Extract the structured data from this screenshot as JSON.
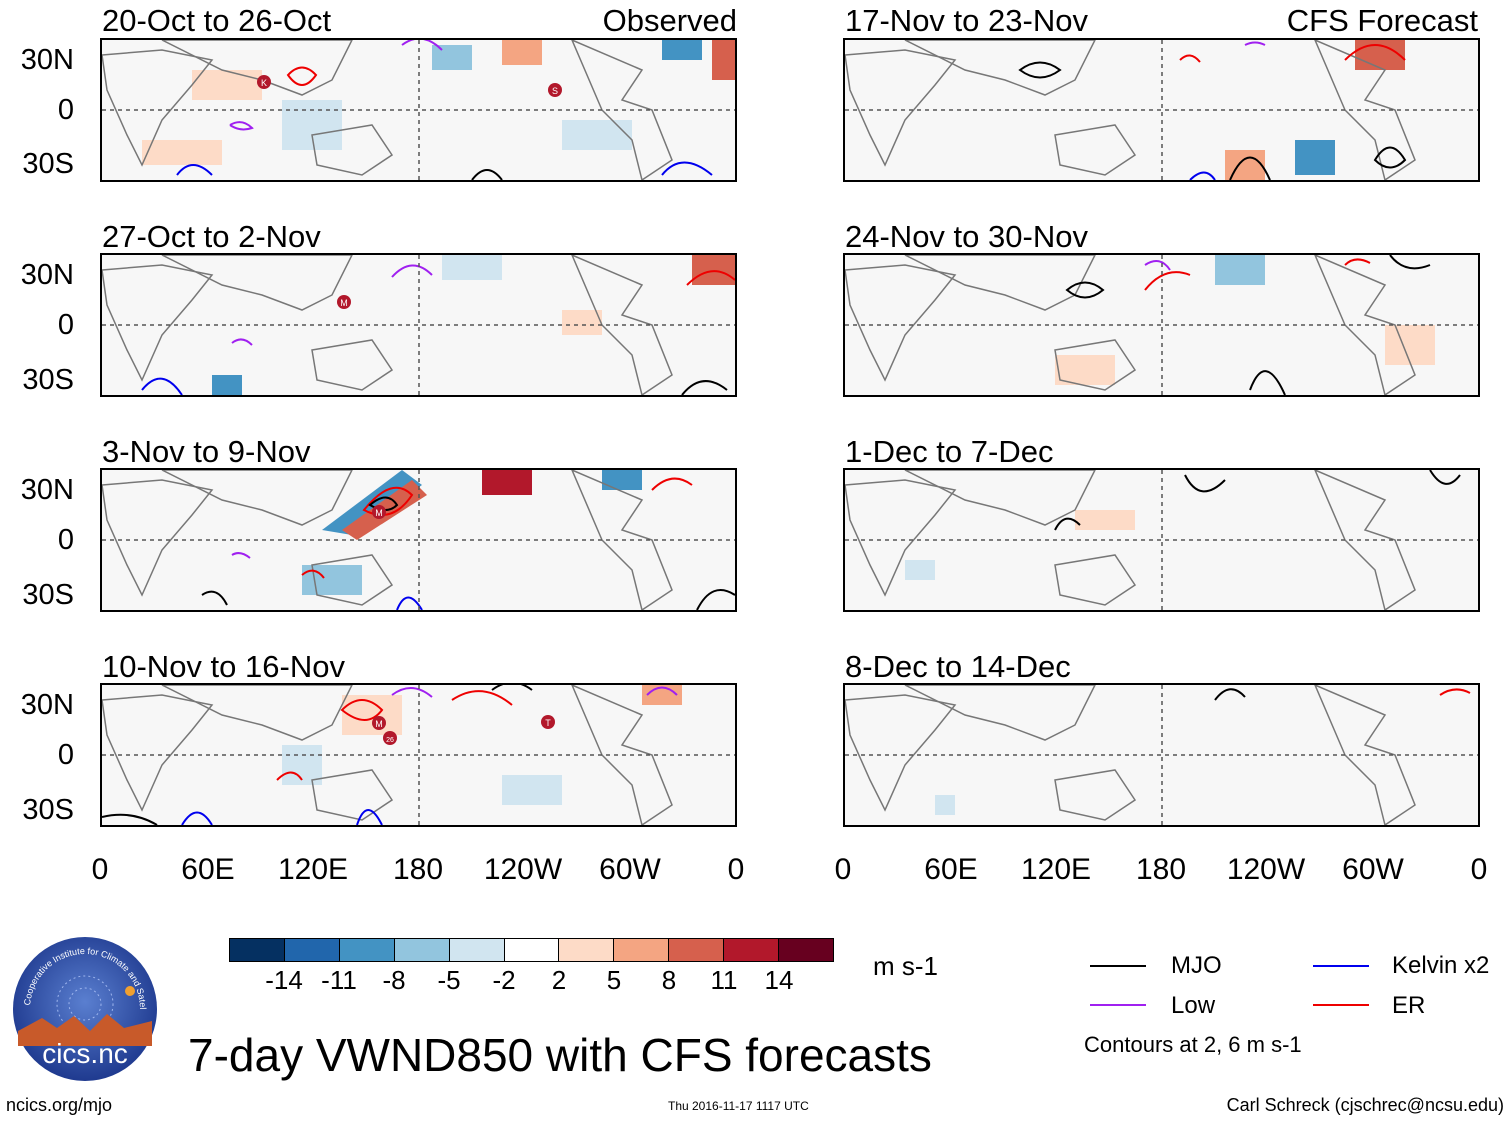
{
  "panels_left": [
    {
      "title": "20-Oct to 26-Oct",
      "tag": "Observed"
    },
    {
      "title": "27-Oct to 2-Nov",
      "tag": ""
    },
    {
      "title": "3-Nov to 9-Nov",
      "tag": ""
    },
    {
      "title": "10-Nov to 16-Nov",
      "tag": ""
    }
  ],
  "panels_right": [
    {
      "title": "17-Nov to 23-Nov",
      "tag": "CFS Forecast"
    },
    {
      "title": "24-Nov to 30-Nov",
      "tag": ""
    },
    {
      "title": "1-Dec to 7-Dec",
      "tag": ""
    },
    {
      "title": "8-Dec to 14-Dec",
      "tag": ""
    }
  ],
  "y_ticks": [
    "30N",
    "0",
    "30S"
  ],
  "x_ticks": [
    "0",
    "60E",
    "120E",
    "180",
    "120W",
    "60W",
    "0"
  ],
  "colorbar": {
    "labels": [
      "-14",
      "-11",
      "-8",
      "-5",
      "-2",
      "2",
      "5",
      "8",
      "11",
      "14"
    ],
    "colors": [
      "#053061",
      "#2166ac",
      "#4393c3",
      "#92c5de",
      "#d1e5f0",
      "#ffffff",
      "#fddbc7",
      "#f4a582",
      "#d6604d",
      "#b2182b",
      "#67001f"
    ],
    "units": "m s-1"
  },
  "legend": {
    "items": [
      {
        "label": "MJO",
        "color": "#000000"
      },
      {
        "label": "Kelvin x2",
        "color": "#0000ee"
      },
      {
        "label": "Low",
        "color": "#a020f0"
      },
      {
        "label": "ER",
        "color": "#ee0000"
      }
    ],
    "note": "Contours at 2, 6 m s-1"
  },
  "main_title": "7-day VWND850 with CFS forecasts",
  "logo_text": "cics.nc",
  "logo_ring_text": "Cooperative Institute for Climate and Satellites",
  "footer": {
    "left": "ncics.org/mjo",
    "center": "Thu 2016-11-17 1117 UTC",
    "right": "Carl Schreck (cjschrec@ncsu.edu)"
  },
  "storm_markers": [
    {
      "panel": 0,
      "label": "K"
    },
    {
      "panel": 0,
      "label": "S"
    },
    {
      "panel": 1,
      "label": "M"
    },
    {
      "panel": 2,
      "label": "M"
    },
    {
      "panel": 3,
      "label": "M"
    },
    {
      "panel": 3,
      "label": "26"
    },
    {
      "panel": 3,
      "label": "T"
    }
  ]
}
